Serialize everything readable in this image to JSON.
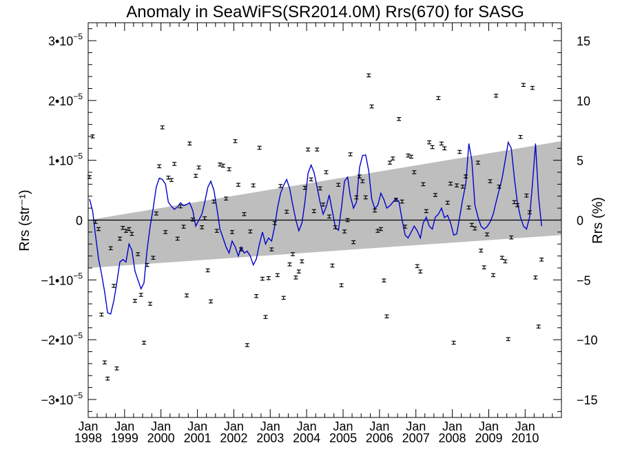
{
  "chart_data": {
    "type": "scatter",
    "title": "Anomaly in SeaWiFS(SR2014.0M) Rrs(670) for SASG",
    "ylabel_left": "Rrs (str⁻¹)",
    "ylabel_right": "Rrs (%)",
    "xlabel": "",
    "x_range": [
      "1998-01-01",
      "2010-12-31"
    ],
    "ylim_left": [
      -3.3e-05,
      3.3e-05
    ],
    "ylim_right": [
      -16.5,
      16.5
    ],
    "x_ticks": [
      {
        "month": "Jan",
        "year": "1998"
      },
      {
        "month": "Jan",
        "year": "1999"
      },
      {
        "month": "Jan",
        "year": "2000"
      },
      {
        "month": "Jan",
        "year": "2001"
      },
      {
        "month": "Jan",
        "year": "2002"
      },
      {
        "month": "Jan",
        "year": "2003"
      },
      {
        "month": "Jan",
        "year": "2004"
      },
      {
        "month": "Jan",
        "year": "2005"
      },
      {
        "month": "Jan",
        "year": "2006"
      },
      {
        "month": "Jan",
        "year": "2007"
      },
      {
        "month": "Jan",
        "year": "2008"
      },
      {
        "month": "Jan",
        "year": "2009"
      },
      {
        "month": "Jan",
        "year": "2010"
      }
    ],
    "y_ticks_left": [
      {
        "value": 3e-05,
        "mant": "3•10",
        "exp": "−5"
      },
      {
        "value": 2e-05,
        "mant": "2•10",
        "exp": "−5"
      },
      {
        "value": 1e-05,
        "mant": "1•10",
        "exp": "−5"
      },
      {
        "value": 0,
        "mant": "0",
        "exp": ""
      },
      {
        "value": -1e-05,
        "mant": "−1•10",
        "exp": "−5"
      },
      {
        "value": -2e-05,
        "mant": "−2•10",
        "exp": "−5"
      },
      {
        "value": -3e-05,
        "mant": "−3•10",
        "exp": "−5"
      }
    ],
    "y_ticks_right": [
      "15",
      "10",
      "5",
      "0",
      "−5",
      "−10",
      "−15"
    ],
    "trend_band": {
      "start": {
        "x": "1998-01-01",
        "upper": 0.0,
        "lower": -8e-06
      },
      "end": {
        "x": "2010-12-31",
        "upper": 1.32e-05,
        "lower": -2.5e-06
      }
    },
    "points": [
      [
        "1998-01-15",
        7.2e-06
      ],
      [
        "1998-02-15",
        1.4e-05
      ],
      [
        "1998-03-15",
        -3e-07
      ],
      [
        "1998-04-15",
        -1.5e-06
      ],
      [
        "1998-05-15",
        -1.58e-05
      ],
      [
        "1998-06-15",
        -2.38e-05
      ],
      [
        "1998-07-15",
        -2.65e-05
      ],
      [
        "1998-08-15",
        -4.7e-06
      ],
      [
        "1998-09-15",
        -1.1e-05
      ],
      [
        "1998-10-15",
        -2.48e-05
      ],
      [
        "1998-11-15",
        -3.1e-06
      ],
      [
        "1998-12-15",
        -1.3e-06
      ],
      [
        "1999-01-15",
        -1.8e-06
      ],
      [
        "1999-02-15",
        -1.5e-06
      ],
      [
        "1999-03-15",
        -2.3e-06
      ],
      [
        "1999-04-15",
        -1.35e-05
      ],
      [
        "1999-05-15",
        -5.7e-06
      ],
      [
        "1999-06-15",
        -1.25e-05
      ],
      [
        "1999-07-15",
        -2.05e-05
      ],
      [
        "1999-08-15",
        -7.5e-06
      ],
      [
        "1999-09-15",
        -1.4e-05
      ],
      [
        "1999-10-15",
        -6.3e-06
      ],
      [
        "1999-11-15",
        1.1e-06
      ],
      [
        "1999-12-15",
        9e-06
      ],
      [
        "2000-01-15",
        1.55e-05
      ],
      [
        "2000-02-15",
        -2e-06
      ],
      [
        "2000-03-15",
        7.1e-06
      ],
      [
        "2000-04-15",
        6.7e-06
      ],
      [
        "2000-05-15",
        9.4e-06
      ],
      [
        "2000-06-15",
        -3.1e-06
      ],
      [
        "2000-07-15",
        2.3e-06
      ],
      [
        "2000-08-15",
        -1.1e-06
      ],
      [
        "2000-09-15",
        -1.26e-05
      ],
      [
        "2000-10-15",
        1.28e-05
      ],
      [
        "2000-11-15",
        1e-07
      ],
      [
        "2000-12-15",
        7.4e-06
      ],
      [
        "2001-01-15",
        8.8e-06
      ],
      [
        "2001-02-15",
        -1.2e-06
      ],
      [
        "2001-03-15",
        3e-07
      ],
      [
        "2001-04-15",
        -8.4e-06
      ],
      [
        "2001-05-15",
        -1.36e-05
      ],
      [
        "2001-06-15",
        3.1e-06
      ],
      [
        "2001-07-15",
        -1.8e-06
      ],
      [
        "2001-08-15",
        9.3e-06
      ],
      [
        "2001-09-15",
        9.1e-06
      ],
      [
        "2001-10-15",
        3.6e-06
      ],
      [
        "2001-11-15",
        8.5e-06
      ],
      [
        "2001-12-15",
        -2e-06
      ],
      [
        "2002-01-15",
        1.32e-05
      ],
      [
        "2002-02-15",
        5.9e-06
      ],
      [
        "2002-03-15",
        -4.9e-06
      ],
      [
        "2002-04-15",
        1e-06
      ],
      [
        "2002-05-15",
        -2.09e-05
      ],
      [
        "2002-06-15",
        -1.9e-06
      ],
      [
        "2002-07-15",
        5.8e-06
      ],
      [
        "2002-08-15",
        -1.27e-05
      ],
      [
        "2002-09-15",
        1.21e-05
      ],
      [
        "2002-10-15",
        -9.8e-06
      ],
      [
        "2002-11-15",
        -1.62e-05
      ],
      [
        "2002-12-15",
        -9.7e-06
      ],
      [
        "2003-01-15",
        -4.9e-06
      ],
      [
        "2003-02-15",
        -5e-07
      ],
      [
        "2003-03-15",
        -9.2e-06
      ],
      [
        "2003-04-15",
        5.7e-06
      ],
      [
        "2003-05-15",
        -1.3e-05
      ],
      [
        "2003-06-15",
        1.4e-06
      ],
      [
        "2003-07-15",
        -7.4e-06
      ],
      [
        "2003-08-15",
        -5.7e-06
      ],
      [
        "2003-09-15",
        -9.6e-06
      ],
      [
        "2003-10-15",
        -8.6e-06
      ],
      [
        "2003-11-15",
        -6.9e-06
      ],
      [
        "2003-12-15",
        5.4e-06
      ],
      [
        "2004-01-15",
        1.18e-05
      ],
      [
        "2004-02-15",
        6.8e-06
      ],
      [
        "2004-03-15",
        1.5e-06
      ],
      [
        "2004-04-15",
        1.18e-05
      ],
      [
        "2004-05-15",
        5.3e-06
      ],
      [
        "2004-06-15",
        2.6e-06
      ],
      [
        "2004-07-15",
        8e-06
      ],
      [
        "2004-08-15",
        6e-07
      ],
      [
        "2004-09-15",
        -7.6e-06
      ],
      [
        "2004-10-15",
        -1.2e-06
      ],
      [
        "2004-11-15",
        5.9e-06
      ],
      [
        "2004-12-15",
        -1.09e-05
      ],
      [
        "2005-01-15",
        -1.9e-06
      ],
      [
        "2005-02-15",
        0.0
      ],
      [
        "2005-03-15",
        1.1e-05
      ],
      [
        "2005-04-15",
        -3.7e-06
      ],
      [
        "2005-05-15",
        3.8e-06
      ],
      [
        "2005-06-15",
        7.3e-06
      ],
      [
        "2005-07-15",
        6.5e-06
      ],
      [
        "2005-08-15",
        3.8e-06
      ],
      [
        "2005-09-15",
        2.42e-05
      ],
      [
        "2005-10-15",
        1.9e-05
      ],
      [
        "2005-11-15",
        1.6e-06
      ],
      [
        "2005-12-15",
        -1.8e-06
      ],
      [
        "2006-01-15",
        -1.5e-06
      ],
      [
        "2006-02-15",
        -1.01e-05
      ],
      [
        "2006-03-15",
        -1.61e-05
      ],
      [
        "2006-04-15",
        9.6e-06
      ],
      [
        "2006-05-15",
        1.03e-05
      ],
      [
        "2006-06-15",
        3.4e-06
      ],
      [
        "2006-07-15",
        1.69e-05
      ],
      [
        "2006-08-15",
        3.1e-06
      ],
      [
        "2006-09-15",
        -1.1e-06
      ],
      [
        "2006-10-15",
        1.08e-05
      ],
      [
        "2006-11-15",
        1.06e-05
      ],
      [
        "2006-12-15",
        8e-06
      ],
      [
        "2007-01-15",
        -7.7e-06
      ],
      [
        "2007-02-15",
        -8.6e-06
      ],
      [
        "2007-03-15",
        6e-06
      ],
      [
        "2007-04-15",
        1.5e-06
      ],
      [
        "2007-05-15",
        1.3e-05
      ],
      [
        "2007-06-15",
        1.22e-05
      ],
      [
        "2007-07-15",
        4.2e-06
      ],
      [
        "2007-08-15",
        2.04e-05
      ],
      [
        "2007-09-15",
        1.28e-05
      ],
      [
        "2007-10-15",
        1.2e-05
      ],
      [
        "2007-11-15",
        2.9e-06
      ],
      [
        "2007-12-15",
        6.1e-06
      ],
      [
        "2008-01-15",
        -2.05e-05
      ],
      [
        "2008-02-15",
        5.8e-06
      ],
      [
        "2008-03-15",
        1.14e-05
      ],
      [
        "2008-04-15",
        5.6e-06
      ],
      [
        "2008-05-15",
        7.3e-06
      ],
      [
        "2008-06-15",
        2.1e-06
      ],
      [
        "2008-07-15",
        -8e-07
      ],
      [
        "2008-08-15",
        -1.4e-06
      ],
      [
        "2008-09-15",
        9.6e-06
      ],
      [
        "2008-10-15",
        -5.1e-06
      ],
      [
        "2008-11-15",
        -7.9e-06
      ],
      [
        "2008-12-15",
        -2.4e-06
      ],
      [
        "2009-01-15",
        6.5e-06
      ],
      [
        "2009-02-15",
        -9.2e-06
      ],
      [
        "2009-03-15",
        2.08e-05
      ],
      [
        "2009-04-15",
        5.6e-06
      ],
      [
        "2009-05-15",
        -6.3e-06
      ],
      [
        "2009-06-15",
        -6.9e-06
      ],
      [
        "2009-07-15",
        -1.99e-05
      ],
      [
        "2009-08-15",
        -2.9e-06
      ],
      [
        "2009-09-15",
        3e-06
      ],
      [
        "2009-10-15",
        2.5e-06
      ],
      [
        "2009-11-15",
        1.39e-05
      ],
      [
        "2009-12-15",
        2.26e-05
      ],
      [
        "2010-01-15",
        4.1e-06
      ],
      [
        "2010-02-15",
        1.3e-06
      ],
      [
        "2010-03-15",
        2.21e-05
      ],
      [
        "2010-04-15",
        -9.6e-06
      ],
      [
        "2010-05-15",
        -1.78e-05
      ],
      [
        "2010-06-15",
        -6.6e-06
      ]
    ],
    "smoothed_line": [
      [
        "1998-01-15",
        3.5e-06
      ],
      [
        "1998-02-15",
        1.5e-06
      ],
      [
        "1998-03-15",
        -2.5e-06
      ],
      [
        "1998-04-15",
        -6.5e-06
      ],
      [
        "1998-05-15",
        -9e-06
      ],
      [
        "1998-06-15",
        -1.2e-05
      ],
      [
        "1998-07-15",
        -1.55e-05
      ],
      [
        "1998-08-15",
        -1.57e-05
      ],
      [
        "1998-09-15",
        -1.35e-05
      ],
      [
        "1998-10-15",
        -1.05e-05
      ],
      [
        "1998-11-15",
        -7e-06
      ],
      [
        "1998-12-15",
        -6.6e-06
      ],
      [
        "1999-01-15",
        -7e-06
      ],
      [
        "1999-02-15",
        -4e-06
      ],
      [
        "1999-03-15",
        -5e-06
      ],
      [
        "1999-04-15",
        -8.5e-06
      ],
      [
        "1999-05-15",
        -1e-05
      ],
      [
        "1999-06-15",
        -1.15e-05
      ],
      [
        "1999-07-15",
        -1.05e-05
      ],
      [
        "1999-08-15",
        -5e-06
      ],
      [
        "1999-09-15",
        -1e-06
      ],
      [
        "1999-10-15",
        2e-06
      ],
      [
        "1999-11-15",
        5.5e-06
      ],
      [
        "1999-12-15",
        7e-06
      ],
      [
        "2000-01-15",
        6.8e-06
      ],
      [
        "2000-02-15",
        6e-06
      ],
      [
        "2000-03-15",
        3e-06
      ],
      [
        "2000-04-15",
        2.3e-06
      ],
      [
        "2000-05-15",
        1.8e-06
      ],
      [
        "2000-06-15",
        2.2e-06
      ],
      [
        "2000-07-15",
        2.9e-06
      ],
      [
        "2000-08-15",
        2.4e-06
      ],
      [
        "2000-09-15",
        2.6e-06
      ],
      [
        "2000-10-15",
        2.9e-06
      ],
      [
        "2000-11-15",
        1.6e-06
      ],
      [
        "2000-12-15",
        -1e-06
      ],
      [
        "2001-01-15",
        0.0
      ],
      [
        "2001-02-15",
        1e-06
      ],
      [
        "2001-03-15",
        3e-06
      ],
      [
        "2001-04-15",
        5.5e-06
      ],
      [
        "2001-05-15",
        6.5e-06
      ],
      [
        "2001-06-15",
        5e-06
      ],
      [
        "2001-07-15",
        2e-06
      ],
      [
        "2001-08-15",
        -1.5e-06
      ],
      [
        "2001-09-15",
        -3e-06
      ],
      [
        "2001-10-15",
        -4.5e-06
      ],
      [
        "2001-11-15",
        -5.5e-06
      ],
      [
        "2001-12-15",
        -3.5e-06
      ],
      [
        "2002-01-15",
        -4.5e-06
      ],
      [
        "2002-02-15",
        -6e-06
      ],
      [
        "2002-03-15",
        -4.5e-06
      ],
      [
        "2002-04-15",
        -5.5e-06
      ],
      [
        "2002-05-15",
        -5.2e-06
      ],
      [
        "2002-06-15",
        -6e-06
      ],
      [
        "2002-07-15",
        -7.5e-06
      ],
      [
        "2002-08-15",
        -6.5e-06
      ],
      [
        "2002-09-15",
        -4e-06
      ],
      [
        "2002-10-15",
        -2e-06
      ],
      [
        "2002-11-15",
        -4e-06
      ],
      [
        "2002-12-15",
        -3e-06
      ],
      [
        "2003-01-15",
        -3.5e-06
      ],
      [
        "2003-02-15",
        -1e-06
      ],
      [
        "2003-03-15",
        2e-06
      ],
      [
        "2003-04-15",
        4.5e-06
      ],
      [
        "2003-05-15",
        5.8e-06
      ],
      [
        "2003-06-15",
        6.8e-06
      ],
      [
        "2003-07-15",
        5.3e-06
      ],
      [
        "2003-08-15",
        2.5e-06
      ],
      [
        "2003-09-15",
        0.0
      ],
      [
        "2003-10-15",
        -1.8e-06
      ],
      [
        "2003-11-15",
        -5e-07
      ],
      [
        "2003-12-15",
        3e-06
      ],
      [
        "2004-01-15",
        7.8e-06
      ],
      [
        "2004-02-15",
        9.2e-06
      ],
      [
        "2004-03-15",
        8e-06
      ],
      [
        "2004-04-15",
        5.5e-06
      ],
      [
        "2004-05-15",
        3e-06
      ],
      [
        "2004-06-15",
        1e-06
      ],
      [
        "2004-07-15",
        2.2e-06
      ],
      [
        "2004-08-15",
        4.2e-06
      ],
      [
        "2004-09-15",
        1.5e-06
      ],
      [
        "2004-10-15",
        -1.2e-06
      ],
      [
        "2004-11-15",
        -1.7e-06
      ],
      [
        "2004-12-15",
        2e-06
      ],
      [
        "2005-01-15",
        6.5e-06
      ],
      [
        "2005-02-15",
        7.2e-06
      ],
      [
        "2005-03-15",
        4e-06
      ],
      [
        "2005-04-15",
        2e-06
      ],
      [
        "2005-05-15",
        3e-06
      ],
      [
        "2005-06-15",
        8.8e-06
      ],
      [
        "2005-07-15",
        1.08e-05
      ],
      [
        "2005-08-15",
        1.09e-05
      ],
      [
        "2005-09-15",
        8.2e-06
      ],
      [
        "2005-10-15",
        3.5e-06
      ],
      [
        "2005-11-15",
        1.9e-06
      ],
      [
        "2005-12-15",
        2.5e-06
      ],
      [
        "2006-01-15",
        4.5e-06
      ],
      [
        "2006-02-15",
        3.4e-06
      ],
      [
        "2006-03-15",
        2e-06
      ],
      [
        "2006-04-15",
        2.4e-06
      ],
      [
        "2006-05-15",
        3e-06
      ],
      [
        "2006-06-15",
        3.6e-06
      ],
      [
        "2006-07-15",
        3.1e-06
      ],
      [
        "2006-08-15",
        1e-07
      ],
      [
        "2006-09-15",
        -2.5e-06
      ],
      [
        "2006-10-15",
        -3e-06
      ],
      [
        "2006-11-15",
        -2e-06
      ],
      [
        "2006-12-15",
        -1e-06
      ],
      [
        "2007-01-15",
        -1.8e-06
      ],
      [
        "2007-02-15",
        -3e-06
      ],
      [
        "2007-03-15",
        -5e-07
      ],
      [
        "2007-04-15",
        5e-07
      ],
      [
        "2007-05-15",
        -1e-06
      ],
      [
        "2007-06-15",
        -1.5e-06
      ],
      [
        "2007-07-15",
        5e-07
      ],
      [
        "2007-08-15",
        1e-06
      ],
      [
        "2007-09-15",
        2e-06
      ],
      [
        "2007-10-15",
        4e-07
      ],
      [
        "2007-11-15",
        8e-07
      ],
      [
        "2007-12-15",
        -5e-07
      ],
      [
        "2008-01-15",
        -2.5e-06
      ],
      [
        "2008-02-15",
        -2.3e-06
      ],
      [
        "2008-03-15",
        5e-07
      ],
      [
        "2008-04-15",
        3.5e-06
      ],
      [
        "2008-05-15",
        6e-06
      ],
      [
        "2008-06-15",
        1.28e-05
      ],
      [
        "2008-07-15",
        1e-05
      ],
      [
        "2008-08-15",
        2.5e-06
      ],
      [
        "2008-09-15",
        5e-07
      ],
      [
        "2008-10-15",
        -1e-06
      ],
      [
        "2008-11-15",
        -1.5e-06
      ],
      [
        "2008-12-15",
        -1.1e-06
      ],
      [
        "2009-01-15",
        -3e-07
      ],
      [
        "2009-02-15",
        1e-06
      ],
      [
        "2009-03-15",
        3e-06
      ],
      [
        "2009-04-15",
        5e-06
      ],
      [
        "2009-05-15",
        7e-06
      ],
      [
        "2009-06-15",
        1e-05
      ],
      [
        "2009-07-15",
        1.3e-05
      ],
      [
        "2009-08-15",
        1.2e-05
      ],
      [
        "2009-09-15",
        7e-06
      ],
      [
        "2009-10-15",
        3e-06
      ],
      [
        "2009-11-15",
        5e-07
      ],
      [
        "2009-12-15",
        -1e-06
      ],
      [
        "2010-01-15",
        -1.5e-06
      ],
      [
        "2010-02-15",
        5e-07
      ],
      [
        "2010-03-15",
        6e-06
      ],
      [
        "2010-04-15",
        1.28e-05
      ],
      [
        "2010-05-15",
        4e-06
      ],
      [
        "2010-06-15",
        -1e-06
      ]
    ],
    "errorbar_halfwidth": 2.5e-07,
    "colors": {
      "band": "#bebebe",
      "line": "#0000cc",
      "points": "#000000",
      "axis": "#000000"
    },
    "grid": false,
    "legend": "none"
  }
}
